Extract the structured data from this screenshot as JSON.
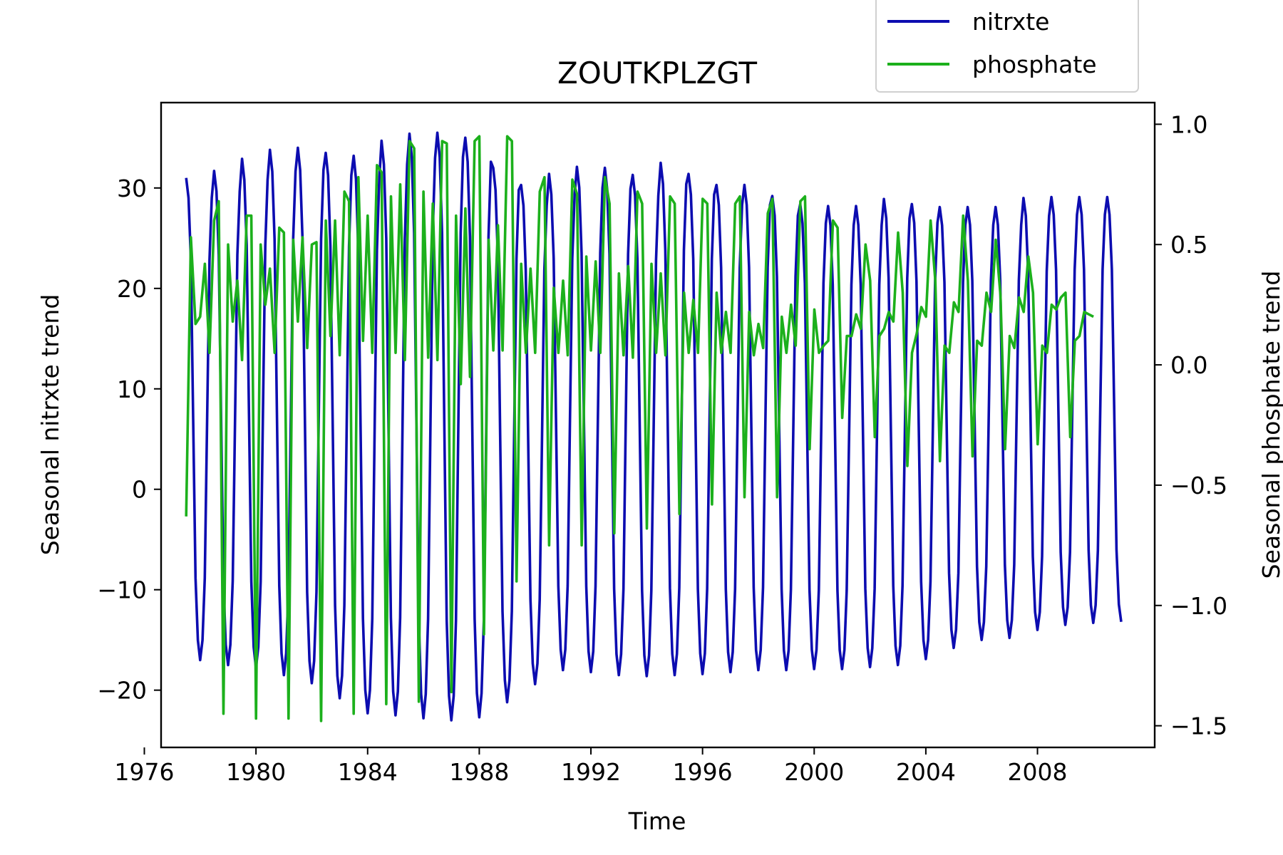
{
  "chart_data": {
    "type": "line",
    "title": "ZOUTKPLZGT",
    "xlabel": "Time",
    "ylabel_left": "Seasonal nitrxte trend",
    "ylabel_right": "Seasonal phosphate trend",
    "xlim": [
      1976.6,
      2012.2
    ],
    "ylim_left": [
      -25.7,
      38.5
    ],
    "ylim_right": [
      -1.59,
      1.09
    ],
    "x_ticks": [
      1976,
      1980,
      1984,
      1988,
      1992,
      1996,
      2000,
      2004,
      2008
    ],
    "x_tick_labels": [
      "1976",
      "1980",
      "1984",
      "1988",
      "1992",
      "1996",
      "2000",
      "2004",
      "2008"
    ],
    "y_left_ticks": [
      -20,
      -10,
      0,
      10,
      20,
      30
    ],
    "y_left_tick_labels": [
      "−20",
      "−10",
      "0",
      "10",
      "20",
      "30"
    ],
    "y_right_ticks": [
      -1.5,
      -1.0,
      -0.5,
      0.0,
      0.5,
      1.0
    ],
    "y_right_tick_labels": [
      "−1.5",
      "−1.0",
      "−0.5",
      "0.0",
      "0.5",
      "1.0"
    ],
    "legend_position": "top-right",
    "grid": false,
    "series": [
      {
        "name": "nitrxte",
        "axis": "left",
        "color": "#0c0cb0",
        "x_start": 1977.5,
        "x_step": 0.08333,
        "period_months": 12,
        "description_of_cycle": "annual cycle",
        "peaks_by_year": [
          31.0,
          31.7,
          32.9,
          33.8,
          34.0,
          33.5,
          33.2,
          34.7,
          35.4,
          35.5,
          35.0,
          32.0,
          30.3,
          31.4,
          32.1,
          32.0,
          31.3,
          32.5,
          31.4,
          30.3,
          30.3,
          29.2,
          28.4,
          28.2,
          28.2,
          28.9,
          28.4,
          28.1,
          28.1,
          28.1,
          29.0,
          29.1,
          29.1
        ],
        "troughs_by_year": [
          -17.0,
          -17.5,
          -17.8,
          -18.5,
          -19.3,
          -20.8,
          -22.3,
          -22.5,
          -22.8,
          -23.0,
          -22.7,
          -21.2,
          -19.4,
          -18.0,
          -18.2,
          -18.5,
          -18.6,
          -18.5,
          -18.4,
          -18.2,
          -18.0,
          -18.0,
          -17.9,
          -17.9,
          -17.7,
          -17.5,
          -16.9,
          -15.8,
          -15.0,
          -14.8,
          -14.0,
          -13.5,
          -13.3,
          -13.2
        ]
      },
      {
        "name": "phosphate",
        "axis": "right",
        "color": "#1cb01c",
        "values": [
          -0.63,
          0.53,
          0.17,
          0.2,
          0.42,
          0.05,
          0.6,
          0.68,
          -1.45,
          0.5,
          0.18,
          0.35,
          0.02,
          0.62,
          0.62,
          -1.47,
          0.5,
          0.25,
          0.4,
          0.05,
          0.57,
          0.55,
          -1.47,
          0.52,
          0.18,
          0.53,
          0.07,
          0.5,
          0.51,
          -1.48,
          0.6,
          0.12,
          0.6,
          0.04,
          0.72,
          0.68,
          -1.45,
          0.78,
          0.1,
          0.62,
          0.05,
          0.83,
          0.8,
          -1.41,
          0.7,
          0.05,
          0.75,
          0.02,
          0.93,
          0.9,
          -1.4,
          0.72,
          0.03,
          0.67,
          0.02,
          0.93,
          0.92,
          -1.36,
          0.62,
          -0.08,
          0.65,
          -0.05,
          0.93,
          0.95,
          -1.12,
          0.52,
          0.06,
          0.58,
          0.06,
          0.95,
          0.93,
          -0.9,
          0.42,
          0.05,
          0.4,
          0.05,
          0.72,
          0.78,
          -0.75,
          0.32,
          0.05,
          0.35,
          0.04,
          0.77,
          0.71,
          -0.75,
          0.45,
          0.06,
          0.43,
          0.05,
          0.78,
          0.67,
          -0.7,
          0.38,
          0.04,
          0.41,
          0.03,
          0.72,
          0.67,
          -0.68,
          0.42,
          0.05,
          0.38,
          0.04,
          0.7,
          0.67,
          -0.62,
          0.3,
          0.05,
          0.27,
          0.05,
          0.69,
          0.67,
          -0.58,
          0.3,
          0.05,
          0.22,
          0.05,
          0.67,
          0.7,
          -0.55,
          0.22,
          0.04,
          0.17,
          0.07,
          0.63,
          0.69,
          -0.55,
          0.2,
          0.05,
          0.25,
          0.08,
          0.68,
          0.7,
          -0.35,
          0.23,
          0.05,
          0.08,
          0.1,
          0.6,
          0.57,
          -0.22,
          0.12,
          0.12,
          0.21,
          0.15,
          0.5,
          0.35,
          -0.3,
          0.12,
          0.15,
          0.22,
          0.18,
          0.55,
          0.3,
          -0.42,
          0.05,
          0.13,
          0.24,
          0.2,
          0.6,
          0.35,
          -0.4,
          0.08,
          0.05,
          0.26,
          0.22,
          0.62,
          0.35,
          -0.38,
          0.1,
          0.08,
          0.3,
          0.22,
          0.52,
          0.29,
          -0.35,
          0.12,
          0.07,
          0.28,
          0.22,
          0.45,
          0.3,
          -0.33,
          0.08,
          0.05,
          0.25,
          0.23,
          0.28,
          0.3,
          -0.3,
          0.1,
          0.12,
          0.22,
          0.21,
          0.2
        ]
      }
    ]
  },
  "legend": {
    "items": [
      {
        "label": "nitrxte",
        "color": "#0c0cb0"
      },
      {
        "label": "phosphate",
        "color": "#1cb01c"
      }
    ]
  }
}
